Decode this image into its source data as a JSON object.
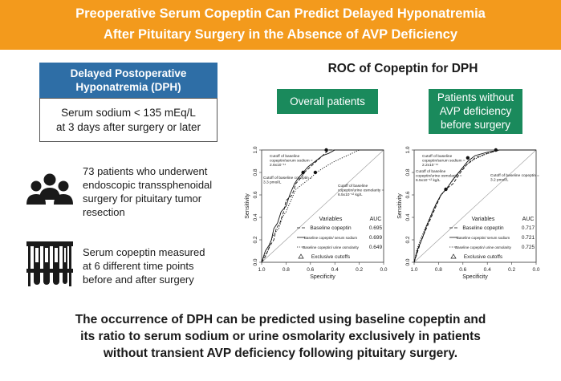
{
  "banner": {
    "line1": "Preoperative Serum Copeptin Can Predict Delayed Hyponatremia",
    "line2": "After Pituitary Surgery in the Absence of AVP Deficiency",
    "color": "#f39a1c"
  },
  "definition": {
    "title_line1": "Delayed Postoperative",
    "title_line2": "Hyponatremia (DPH)",
    "body_line1": "Serum sodium < 135 mEq/L",
    "body_line2": "at 3 days after surgery or later",
    "header_color": "#2e6ea6"
  },
  "patients": {
    "icon": "people-group-icon",
    "lines": [
      "73 patients who underwent",
      "endoscopic transsphenoidal",
      "surgery for pituitary tumor",
      "resection"
    ]
  },
  "measurement": {
    "icon": "test-tubes-icon",
    "lines": [
      "Serum copeptin measured",
      "at 6 different time points",
      "before and after surgery"
    ]
  },
  "roc": {
    "title": "ROC of Copeptin for DPH",
    "group1_label": "Overall patients",
    "group2_lines": [
      "Patients without",
      "AVP deficiency",
      "before surgery"
    ],
    "group_color": "#1a8a5c"
  },
  "chart_data": [
    {
      "type": "line",
      "panel": "Overall patients",
      "xlabel": "Specificity",
      "ylabel": "Sensitivity",
      "xlim": [
        1.0,
        0.0
      ],
      "ylim": [
        0.0,
        1.0
      ],
      "xticks": [
        "1.0",
        "0.8",
        "0.6",
        "0.4",
        "0.2",
        "0.0"
      ],
      "yticks": [
        "0.0",
        "0.2",
        "0.4",
        "0.6",
        "0.8",
        "1.0"
      ],
      "legend_header": [
        "Variables",
        "AUC"
      ],
      "series": [
        {
          "name": "Baseline copeptin",
          "auc": "0.695",
          "style": "dashed",
          "points": [
            [
              1.0,
              0.0
            ],
            [
              0.97,
              0.05
            ],
            [
              0.95,
              0.1
            ],
            [
              0.93,
              0.15
            ],
            [
              0.9,
              0.2
            ],
            [
              0.88,
              0.3
            ],
            [
              0.85,
              0.35
            ],
            [
              0.82,
              0.45
            ],
            [
              0.8,
              0.55
            ],
            [
              0.75,
              0.6
            ],
            [
              0.72,
              0.7
            ],
            [
              0.68,
              0.75
            ],
            [
              0.65,
              0.8
            ],
            [
              0.6,
              0.85
            ],
            [
              0.55,
              0.9
            ],
            [
              0.5,
              0.95
            ],
            [
              0.45,
              1.0
            ],
            [
              0.0,
              1.0
            ]
          ]
        },
        {
          "name": "Baseline copeptin/ serum sodium",
          "auc": "0.699",
          "style": "solid",
          "points": [
            [
              1.0,
              0.0
            ],
            [
              0.97,
              0.1
            ],
            [
              0.94,
              0.15
            ],
            [
              0.92,
              0.2
            ],
            [
              0.9,
              0.3
            ],
            [
              0.87,
              0.35
            ],
            [
              0.84,
              0.45
            ],
            [
              0.8,
              0.5
            ],
            [
              0.77,
              0.6
            ],
            [
              0.73,
              0.7
            ],
            [
              0.7,
              0.75
            ],
            [
              0.66,
              0.8
            ],
            [
              0.62,
              0.85
            ],
            [
              0.56,
              0.9
            ],
            [
              0.5,
              0.95
            ],
            [
              0.45,
              0.97
            ],
            [
              0.4,
              1.0
            ],
            [
              0.0,
              1.0
            ]
          ]
        },
        {
          "name": "Baseline copeptin/ urine osmolarity",
          "auc": "0.649",
          "style": "dotted",
          "points": [
            [
              1.0,
              0.0
            ],
            [
              0.98,
              0.05
            ],
            [
              0.95,
              0.1
            ],
            [
              0.92,
              0.2
            ],
            [
              0.9,
              0.25
            ],
            [
              0.86,
              0.3
            ],
            [
              0.83,
              0.4
            ],
            [
              0.8,
              0.45
            ],
            [
              0.76,
              0.55
            ],
            [
              0.72,
              0.65
            ],
            [
              0.66,
              0.7
            ],
            [
              0.6,
              0.75
            ],
            [
              0.55,
              0.8
            ],
            [
              0.48,
              0.85
            ],
            [
              0.4,
              0.9
            ],
            [
              0.3,
              0.95
            ],
            [
              0.2,
              1.0
            ],
            [
              0.0,
              1.0
            ]
          ]
        }
      ],
      "exclusive_label": "Exclusive cutoffs",
      "cutoffs": [
        {
          "label": "Cutoff of baseline copeptin/serum sodium = 2.6x10⁻¹¹",
          "x": 0.47,
          "y": 1.0
        },
        {
          "label": "Cutoff of baseline copeptin = 3.3 pmol/L",
          "x": 0.66,
          "y": 0.8
        },
        {
          "label": "Cutoff of baseline copeptin/urine osmolarity = 6.5x10⁻¹² kg/L",
          "x": 0.56,
          "y": 0.8
        }
      ]
    },
    {
      "type": "line",
      "panel": "Patients without AVP deficiency before surgery",
      "xlabel": "Specificity",
      "ylabel": "Sensitivity",
      "xlim": [
        1.0,
        0.0
      ],
      "ylim": [
        0.0,
        1.0
      ],
      "xticks": [
        "1.0",
        "0.8",
        "0.6",
        "0.4",
        "0.2",
        "0.0"
      ],
      "yticks": [
        "0.0",
        "0.2",
        "0.4",
        "0.6",
        "0.8",
        "1.0"
      ],
      "legend_header": [
        "Variables",
        "AUC"
      ],
      "series": [
        {
          "name": "Baseline copeptin",
          "auc": "0.717",
          "style": "dashed",
          "points": [
            [
              1.0,
              0.0
            ],
            [
              0.97,
              0.1
            ],
            [
              0.94,
              0.2
            ],
            [
              0.9,
              0.3
            ],
            [
              0.86,
              0.4
            ],
            [
              0.82,
              0.5
            ],
            [
              0.78,
              0.6
            ],
            [
              0.74,
              0.65
            ],
            [
              0.68,
              0.7
            ],
            [
              0.62,
              0.8
            ],
            [
              0.56,
              0.88
            ],
            [
              0.5,
              0.93
            ],
            [
              0.4,
              0.97
            ],
            [
              0.3,
              1.0
            ],
            [
              0.0,
              1.0
            ]
          ]
        },
        {
          "name": "Baseline copeptin/ serum sodium",
          "auc": "0.721",
          "style": "solid",
          "points": [
            [
              1.0,
              0.0
            ],
            [
              0.97,
              0.12
            ],
            [
              0.93,
              0.22
            ],
            [
              0.9,
              0.32
            ],
            [
              0.86,
              0.42
            ],
            [
              0.82,
              0.52
            ],
            [
              0.78,
              0.6
            ],
            [
              0.73,
              0.66
            ],
            [
              0.68,
              0.74
            ],
            [
              0.62,
              0.82
            ],
            [
              0.56,
              0.9
            ],
            [
              0.5,
              0.95
            ],
            [
              0.4,
              0.98
            ],
            [
              0.3,
              1.0
            ],
            [
              0.0,
              1.0
            ]
          ]
        },
        {
          "name": "Baseline copeptin/ urine osmolarity",
          "auc": "0.725",
          "style": "dotted",
          "points": [
            [
              1.0,
              0.0
            ],
            [
              0.98,
              0.1
            ],
            [
              0.95,
              0.2
            ],
            [
              0.91,
              0.3
            ],
            [
              0.87,
              0.4
            ],
            [
              0.83,
              0.5
            ],
            [
              0.79,
              0.58
            ],
            [
              0.74,
              0.65
            ],
            [
              0.69,
              0.72
            ],
            [
              0.63,
              0.8
            ],
            [
              0.57,
              0.87
            ],
            [
              0.5,
              0.92
            ],
            [
              0.42,
              0.96
            ],
            [
              0.3,
              1.0
            ],
            [
              0.0,
              1.0
            ]
          ]
        }
      ],
      "exclusive_label": "Exclusive cutoffs",
      "cutoffs": [
        {
          "label": "Cutoff of baseline copeptin/serum sodium = 2.2x10⁻¹¹",
          "x": 0.33,
          "y": 1.0
        },
        {
          "label": "Cutoff of baseline copeptin = 3.2 pmol/L",
          "x": 0.56,
          "y": 0.93
        },
        {
          "label": "Cutoff of baseline copeptin/urine osmolarity = 6.5x10⁻¹² kg/L",
          "x": 0.74,
          "y": 0.65
        }
      ]
    }
  ],
  "conclusion": {
    "line1": "The occurrence of DPH can be predicted using baseline copeptin and",
    "line2": "its ratio to serum sodium or urine osmolarity exclusively in patients",
    "line3": "without transient AVP deficiency following pituitary surgery."
  }
}
